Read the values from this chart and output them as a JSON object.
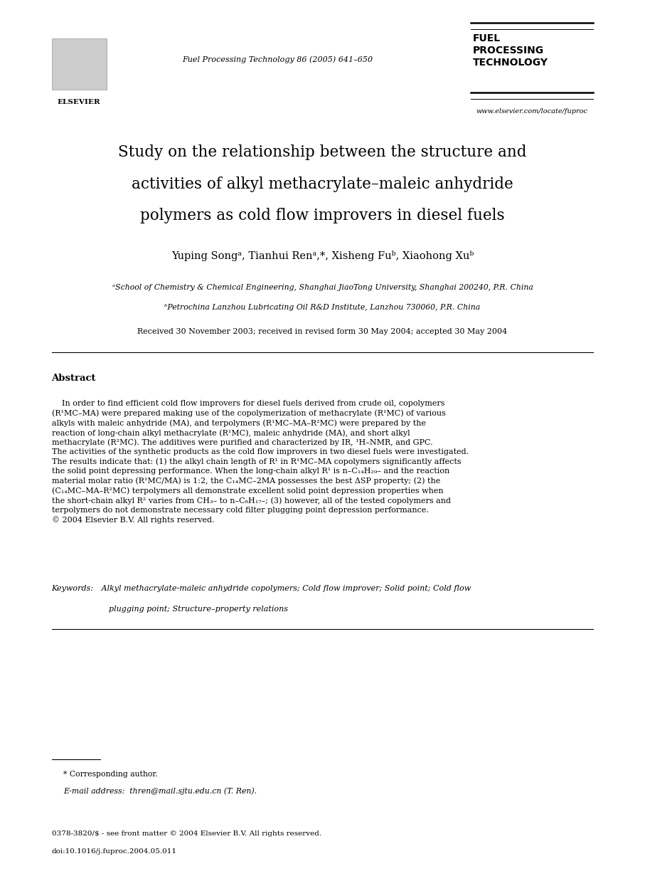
{
  "bg_color": "#ffffff",
  "page_width": 9.07,
  "page_height": 12.38,
  "journal_name": "FUEL\nPROCESSING\nTECHNOLOGY",
  "journal_ref": "Fuel Processing Technology 86 (2005) 641–650",
  "journal_url": "www.elsevier.com/locate/fuproc",
  "title_line1": "Study on the relationship between the structure and",
  "title_line2": "activities of alkyl methacrylate–maleic anhydride",
  "title_line3": "polymers as cold flow improvers in diesel fuels",
  "authors": "Yuping Songᵃ, Tianhui Renᵃ,*, Xisheng Fuᵇ, Xiaohong Xuᵇ",
  "affil_a": "ᵃSchool of Chemistry & Chemical Engineering, Shanghai JiaoTong University, Shanghai 200240, P.R. China",
  "affil_b": "ᵇPetrochina Lanzhou Lubricating Oil R&D Institute, Lanzhou 730060, P.R. China",
  "received": "Received 30 November 2003; received in revised form 30 May 2004; accepted 30 May 2004",
  "abstract_title": "Abstract",
  "abstract_para": "    In order to find efficient cold flow improvers for diesel fuels derived from crude oil, copolymers\n(R¹MC–MA) were prepared making use of the copolymerization of methacrylate (R¹MC) of various\nalkyls with maleic anhydride (MA), and terpolymers (R¹MC–MA–R²MC) were prepared by the\nreaction of long-chain alkyl methacrylate (R¹MC), maleic anhydride (MA), and short alkyl\nmethacrylate (R²MC). The additives were purified and characterized by IR, ¹H–NMR, and GPC.\nThe activities of the synthetic products as the cold flow improvers in two diesel fuels were investigated.\nThe results indicate that: (1) the alkyl chain length of R¹ in R¹MC–MA copolymers significantly affects\nthe solid point depressing performance. When the long-chain alkyl R¹ is n–C₁₄H₂₉– and the reaction\nmaterial molar ratio (R¹MC/MA) is 1:2, the C₁₄MC–2MA possesses the best ΔSP property; (2) the\n(C₁₄MC–MA–R²MC) terpolymers all demonstrate excellent solid point depression properties when\nthe short-chain alkyl R² varies from CH₃– to n–C₈H₁₇–; (3) however, all of the tested copolymers and\nterpolymers do not demonstrate necessary cold filter plugging point depression performance.\n© 2004 Elsevier B.V. All rights reserved.",
  "keywords_label": "Keywords:",
  "keywords_line1": " Alkyl methacrylate-maleic anhydride copolymers; Cold flow improver; Solid point; Cold flow",
  "keywords_line2": "    plugging point; Structure–property relations",
  "footnote_star": "* Corresponding author.",
  "footnote_email": "E-mail address:  thren@mail.sjtu.edu.cn (T. Ren).",
  "footer_line1": "0378-3820/$ - see front matter © 2004 Elsevier B.V. All rights reserved.",
  "footer_line2": "doi:10.1016/j.fuproc.2004.05.011",
  "elsevier_text": "ELSEVIER"
}
